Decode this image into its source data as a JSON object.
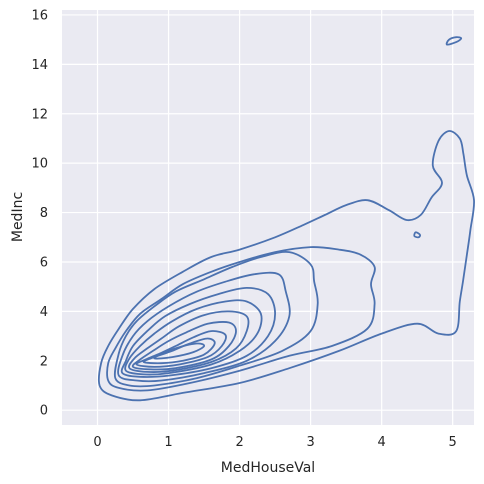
{
  "chart_data": {
    "type": "contour",
    "title": "",
    "xlabel": "MedHouseVal",
    "ylabel": "MedInc",
    "xlim": [
      -0.5,
      5.3
    ],
    "ylim": [
      -0.6,
      16.2
    ],
    "xticks": [
      0,
      1,
      2,
      3,
      4,
      5
    ],
    "yticks": [
      0,
      2,
      4,
      6,
      8,
      10,
      12,
      14,
      16
    ],
    "grid": true,
    "background": "#eaeaf2",
    "line_color": "#4c72b0",
    "series": [
      {
        "points": [
          [
            0.03,
            1.0
          ],
          [
            0.2,
            0.6
          ],
          [
            0.6,
            0.4
          ],
          [
            1.2,
            0.7
          ],
          [
            2.0,
            1.1
          ],
          [
            2.7,
            1.7
          ],
          [
            3.4,
            2.4
          ],
          [
            4.0,
            3.1
          ],
          [
            4.5,
            3.5
          ],
          [
            4.8,
            3.1
          ],
          [
            5.05,
            3.2
          ],
          [
            5.1,
            4.4
          ],
          [
            5.15,
            5.3
          ],
          [
            5.2,
            6.3
          ],
          [
            5.25,
            7.3
          ],
          [
            5.3,
            8.5
          ],
          [
            5.2,
            9.5
          ],
          [
            5.15,
            10.4
          ],
          [
            5.1,
            11.0
          ],
          [
            4.95,
            11.3
          ],
          [
            4.8,
            10.9
          ],
          [
            4.72,
            9.9
          ],
          [
            4.85,
            9.2
          ],
          [
            4.7,
            8.6
          ],
          [
            4.55,
            7.9
          ],
          [
            4.35,
            7.7
          ],
          [
            4.1,
            8.1
          ],
          [
            3.8,
            8.5
          ],
          [
            3.5,
            8.3
          ],
          [
            3.2,
            7.9
          ],
          [
            2.9,
            7.5
          ],
          [
            2.5,
            7.0
          ],
          [
            2.0,
            6.5
          ],
          [
            1.6,
            6.2
          ],
          [
            1.2,
            5.6
          ],
          [
            0.8,
            4.9
          ],
          [
            0.5,
            4.1
          ],
          [
            0.3,
            3.3
          ],
          [
            0.15,
            2.6
          ],
          [
            0.05,
            1.9
          ],
          [
            0.03,
            1.0
          ]
        ]
      },
      {
        "points": [
          [
            0.15,
            1.2
          ],
          [
            0.3,
            0.9
          ],
          [
            0.7,
            0.8
          ],
          [
            1.3,
            1.1
          ],
          [
            2.0,
            1.6
          ],
          [
            2.7,
            2.2
          ],
          [
            3.3,
            2.6
          ],
          [
            3.8,
            3.3
          ],
          [
            3.9,
            4.3
          ],
          [
            3.85,
            5.1
          ],
          [
            3.9,
            5.8
          ],
          [
            3.7,
            6.3
          ],
          [
            3.4,
            6.5
          ],
          [
            3.0,
            6.6
          ],
          [
            2.5,
            6.4
          ],
          [
            2.0,
            6.0
          ],
          [
            1.6,
            5.6
          ],
          [
            1.2,
            5.1
          ],
          [
            0.9,
            4.5
          ],
          [
            0.6,
            3.9
          ],
          [
            0.4,
            3.2
          ],
          [
            0.25,
            2.5
          ],
          [
            0.15,
            1.9
          ],
          [
            0.15,
            1.2
          ]
        ]
      },
      {
        "points": [
          [
            0.25,
            1.3
          ],
          [
            0.45,
            1.0
          ],
          [
            0.8,
            1.0
          ],
          [
            1.4,
            1.3
          ],
          [
            2.0,
            1.8
          ],
          [
            2.6,
            2.4
          ],
          [
            3.0,
            3.2
          ],
          [
            3.1,
            4.3
          ],
          [
            3.05,
            5.2
          ],
          [
            3.0,
            5.9
          ],
          [
            2.7,
            6.4
          ],
          [
            2.3,
            6.2
          ],
          [
            1.9,
            5.8
          ],
          [
            1.5,
            5.3
          ],
          [
            1.1,
            4.8
          ],
          [
            0.8,
            4.2
          ],
          [
            0.55,
            3.6
          ],
          [
            0.4,
            3.0
          ],
          [
            0.3,
            2.3
          ],
          [
            0.25,
            1.3
          ]
        ]
      },
      {
        "points": [
          [
            0.3,
            1.4
          ],
          [
            0.55,
            1.2
          ],
          [
            0.9,
            1.2
          ],
          [
            1.5,
            1.5
          ],
          [
            2.1,
            2.0
          ],
          [
            2.5,
            2.8
          ],
          [
            2.7,
            3.8
          ],
          [
            2.65,
            4.8
          ],
          [
            2.55,
            5.5
          ],
          [
            2.2,
            5.5
          ],
          [
            1.8,
            5.2
          ],
          [
            1.4,
            4.8
          ],
          [
            1.0,
            4.2
          ],
          [
            0.7,
            3.6
          ],
          [
            0.5,
            3.0
          ],
          [
            0.35,
            2.2
          ],
          [
            0.3,
            1.4
          ]
        ]
      },
      {
        "points": [
          [
            0.35,
            1.5
          ],
          [
            0.6,
            1.35
          ],
          [
            1.0,
            1.4
          ],
          [
            1.6,
            1.7
          ],
          [
            2.1,
            2.2
          ],
          [
            2.4,
            3.0
          ],
          [
            2.5,
            3.9
          ],
          [
            2.4,
            4.7
          ],
          [
            2.1,
            4.95
          ],
          [
            1.7,
            4.7
          ],
          [
            1.3,
            4.3
          ],
          [
            0.95,
            3.8
          ],
          [
            0.7,
            3.2
          ],
          [
            0.5,
            2.6
          ],
          [
            0.4,
            2.0
          ],
          [
            0.35,
            1.5
          ]
        ]
      },
      {
        "points": [
          [
            0.4,
            1.6
          ],
          [
            0.65,
            1.45
          ],
          [
            1.0,
            1.5
          ],
          [
            1.6,
            1.85
          ],
          [
            2.0,
            2.4
          ],
          [
            2.25,
            3.1
          ],
          [
            2.3,
            3.9
          ],
          [
            2.1,
            4.4
          ],
          [
            1.8,
            4.4
          ],
          [
            1.4,
            4.1
          ],
          [
            1.05,
            3.6
          ],
          [
            0.8,
            3.1
          ],
          [
            0.6,
            2.6
          ],
          [
            0.45,
            2.1
          ],
          [
            0.4,
            1.6
          ]
        ]
      },
      {
        "points": [
          [
            0.45,
            1.7
          ],
          [
            0.7,
            1.55
          ],
          [
            1.05,
            1.6
          ],
          [
            1.6,
            1.95
          ],
          [
            1.95,
            2.5
          ],
          [
            2.1,
            3.2
          ],
          [
            2.1,
            3.8
          ],
          [
            1.85,
            4.0
          ],
          [
            1.5,
            3.85
          ],
          [
            1.15,
            3.4
          ],
          [
            0.9,
            2.9
          ],
          [
            0.7,
            2.5
          ],
          [
            0.52,
            2.1
          ],
          [
            0.45,
            1.7
          ]
        ]
      },
      {
        "points": [
          [
            0.5,
            1.75
          ],
          [
            0.75,
            1.65
          ],
          [
            1.1,
            1.7
          ],
          [
            1.6,
            2.05
          ],
          [
            1.85,
            2.6
          ],
          [
            1.95,
            3.2
          ],
          [
            1.85,
            3.55
          ],
          [
            1.55,
            3.5
          ],
          [
            1.25,
            3.15
          ],
          [
            1.0,
            2.8
          ],
          [
            0.78,
            2.4
          ],
          [
            0.6,
            2.05
          ],
          [
            0.5,
            1.75
          ]
        ]
      },
      {
        "points": [
          [
            0.55,
            1.85
          ],
          [
            0.8,
            1.75
          ],
          [
            1.15,
            1.85
          ],
          [
            1.55,
            2.15
          ],
          [
            1.75,
            2.6
          ],
          [
            1.8,
            3.05
          ],
          [
            1.6,
            3.2
          ],
          [
            1.35,
            2.95
          ],
          [
            1.1,
            2.6
          ],
          [
            0.88,
            2.3
          ],
          [
            0.68,
            2.05
          ],
          [
            0.55,
            1.85
          ]
        ]
      },
      {
        "points": [
          [
            0.65,
            1.95
          ],
          [
            0.9,
            1.9
          ],
          [
            1.2,
            2.0
          ],
          [
            1.5,
            2.25
          ],
          [
            1.65,
            2.7
          ],
          [
            1.55,
            2.9
          ],
          [
            1.3,
            2.7
          ],
          [
            1.05,
            2.4
          ],
          [
            0.8,
            2.15
          ],
          [
            0.65,
            1.95
          ]
        ]
      },
      {
        "points": [
          [
            0.8,
            2.1
          ],
          [
            1.05,
            2.15
          ],
          [
            1.35,
            2.35
          ],
          [
            1.5,
            2.6
          ],
          [
            1.4,
            2.7
          ],
          [
            1.15,
            2.55
          ],
          [
            0.95,
            2.35
          ],
          [
            0.8,
            2.1
          ]
        ]
      },
      {
        "points": [
          [
            4.92,
            14.8
          ],
          [
            5.05,
            14.9
          ],
          [
            5.12,
            15.05
          ],
          [
            5.05,
            15.1
          ],
          [
            4.95,
            15.0
          ],
          [
            4.92,
            14.8
          ]
        ]
      },
      {
        "points": [
          [
            4.46,
            7.05
          ],
          [
            4.52,
            7.0
          ],
          [
            4.54,
            7.1
          ],
          [
            4.48,
            7.2
          ],
          [
            4.46,
            7.05
          ]
        ]
      }
    ]
  }
}
